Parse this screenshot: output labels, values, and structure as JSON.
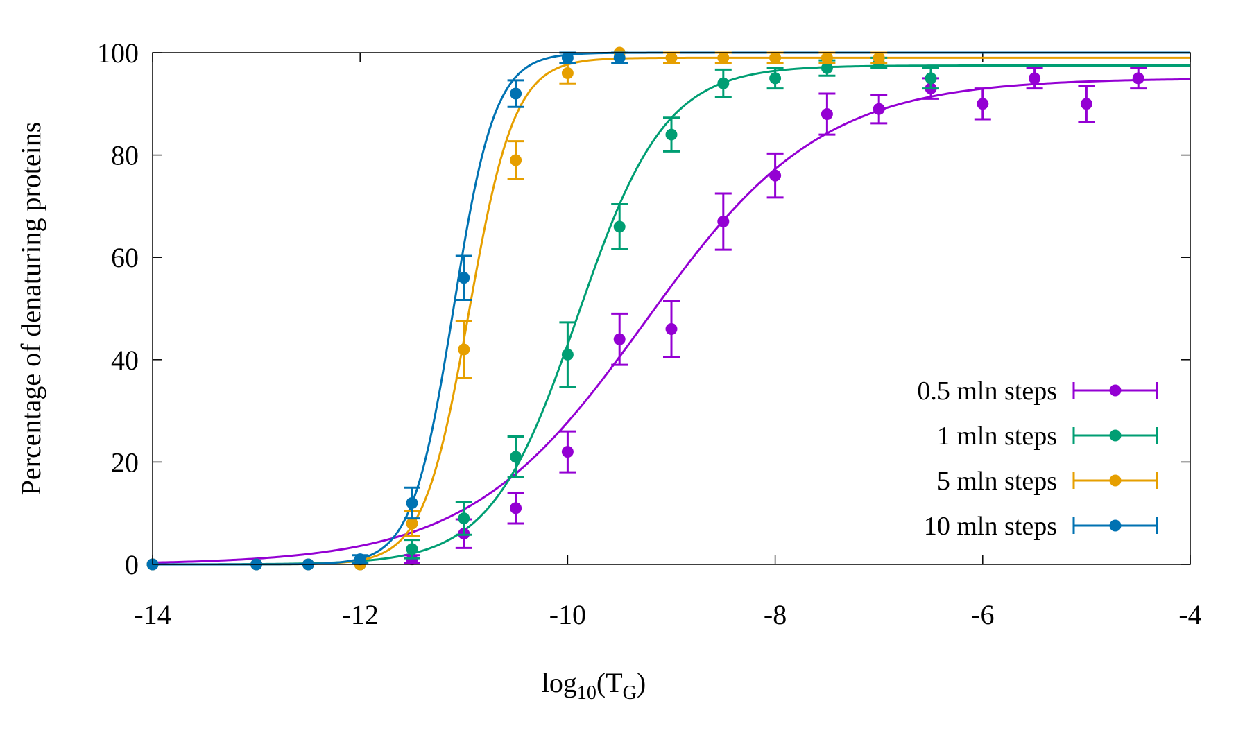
{
  "chart_data": {
    "type": "scatter",
    "title": "",
    "xlabel": {
      "base": "log",
      "sub1": "10",
      "mid": "(T",
      "sub2": "G",
      "end": ")"
    },
    "ylabel": "Percentage of denaturing proteins",
    "xlim": [
      -14,
      -4
    ],
    "ylim": [
      0,
      100
    ],
    "xticks": [
      -14,
      -12,
      -10,
      -8,
      -6,
      -4
    ],
    "yticks": [
      0,
      20,
      40,
      60,
      80,
      100
    ],
    "xtick_labels": [
      "-14",
      "-12",
      "-10",
      "-8",
      "-6",
      "-4"
    ],
    "ytick_labels": [
      "0",
      "20",
      "40",
      "60",
      "80",
      "100"
    ],
    "legend_position": "bottom-right",
    "series": [
      {
        "name": "0.5 mln steps",
        "color": "#9400d3",
        "points": [
          {
            "x": -14,
            "y": 0,
            "err": 0
          },
          {
            "x": -13,
            "y": 0,
            "err": 0
          },
          {
            "x": -12.5,
            "y": 0,
            "err": 0
          },
          {
            "x": -12,
            "y": 0,
            "err": 0
          },
          {
            "x": -11.5,
            "y": 1,
            "err": 0.8
          },
          {
            "x": -11,
            "y": 6,
            "err": 2.8
          },
          {
            "x": -10.5,
            "y": 11,
            "err": 3
          },
          {
            "x": -10,
            "y": 22,
            "err": 4
          },
          {
            "x": -9.5,
            "y": 44,
            "err": 5
          },
          {
            "x": -9,
            "y": 46,
            "err": 5.5
          },
          {
            "x": -8.5,
            "y": 67,
            "err": 5.5
          },
          {
            "x": -8,
            "y": 76,
            "err": 4.3
          },
          {
            "x": -7.5,
            "y": 88,
            "err": 4
          },
          {
            "x": -7,
            "y": 89,
            "err": 2.8
          },
          {
            "x": -6.5,
            "y": 93,
            "err": 2
          },
          {
            "x": -6,
            "y": 90,
            "err": 3
          },
          {
            "x": -5.5,
            "y": 95,
            "err": 2
          },
          {
            "x": -5,
            "y": 90,
            "err": 3.5
          },
          {
            "x": -4.5,
            "y": 95,
            "err": 2
          }
        ],
        "fit": {
          "amplitude": 95,
          "center": -9.25,
          "width": 0.85
        }
      },
      {
        "name": "1 mln steps",
        "color": "#009e73",
        "points": [
          {
            "x": -14,
            "y": 0,
            "err": 0
          },
          {
            "x": -13,
            "y": 0,
            "err": 0
          },
          {
            "x": -12.5,
            "y": 0,
            "err": 0
          },
          {
            "x": -12,
            "y": 0,
            "err": 0
          },
          {
            "x": -11.5,
            "y": 3,
            "err": 1.8
          },
          {
            "x": -11,
            "y": 9,
            "err": 3.2
          },
          {
            "x": -10.5,
            "y": 21,
            "err": 4
          },
          {
            "x": -10,
            "y": 41,
            "err": 6.3
          },
          {
            "x": -9.5,
            "y": 66,
            "err": 4.4
          },
          {
            "x": -9,
            "y": 84,
            "err": 3.3
          },
          {
            "x": -8.5,
            "y": 94,
            "err": 2.7
          },
          {
            "x": -8,
            "y": 95,
            "err": 2
          },
          {
            "x": -7.5,
            "y": 97,
            "err": 1.5
          },
          {
            "x": -7,
            "y": 98,
            "err": 1
          },
          {
            "x": -6.5,
            "y": 95,
            "err": 2
          }
        ],
        "fit": {
          "amplitude": 97.5,
          "center": -9.9,
          "width": 0.42
        }
      },
      {
        "name": "5 mln steps",
        "color": "#e69f00",
        "points": [
          {
            "x": -14,
            "y": 0,
            "err": 0
          },
          {
            "x": -13,
            "y": 0,
            "err": 0
          },
          {
            "x": -12.5,
            "y": 0,
            "err": 0
          },
          {
            "x": -12,
            "y": 0,
            "err": 0
          },
          {
            "x": -11.5,
            "y": 8,
            "err": 2.5
          },
          {
            "x": -11,
            "y": 42,
            "err": 5.5
          },
          {
            "x": -10.5,
            "y": 79,
            "err": 3.7
          },
          {
            "x": -10,
            "y": 96,
            "err": 2
          },
          {
            "x": -9.5,
            "y": 100,
            "err": 0
          },
          {
            "x": -9,
            "y": 99,
            "err": 1
          },
          {
            "x": -8.5,
            "y": 99,
            "err": 1
          },
          {
            "x": -8,
            "y": 99,
            "err": 1
          },
          {
            "x": -7.5,
            "y": 99,
            "err": 1
          },
          {
            "x": -7,
            "y": 99,
            "err": 1
          }
        ],
        "fit": {
          "amplitude": 99,
          "center": -10.95,
          "width": 0.22
        }
      },
      {
        "name": "10 mln steps",
        "color": "#0072b2",
        "points": [
          {
            "x": -14,
            "y": 0,
            "err": 0
          },
          {
            "x": -13,
            "y": 0,
            "err": 0
          },
          {
            "x": -12.5,
            "y": 0,
            "err": 0
          },
          {
            "x": -12,
            "y": 1,
            "err": 0.8
          },
          {
            "x": -11.5,
            "y": 12,
            "err": 3
          },
          {
            "x": -11,
            "y": 56,
            "err": 4.3
          },
          {
            "x": -10.5,
            "y": 92,
            "err": 2.6
          },
          {
            "x": -10,
            "y": 99,
            "err": 1
          },
          {
            "x": -9.5,
            "y": 99,
            "err": 1
          }
        ],
        "fit": {
          "amplitude": 100,
          "center": -11.1,
          "width": 0.2
        }
      }
    ]
  }
}
